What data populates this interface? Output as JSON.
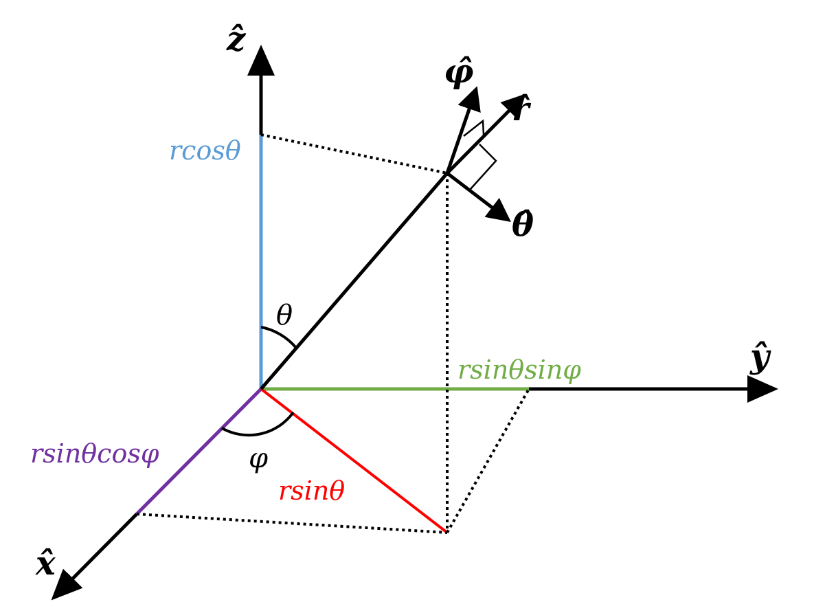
{
  "axes": {
    "x_label": "x̂",
    "y_label": "ŷ",
    "z_label": "ẑ"
  },
  "unit_vectors": {
    "r_label": "r̂",
    "theta_label": "θ̂",
    "phi_label": "φ̂"
  },
  "angles": {
    "theta": "θ",
    "phi": "φ"
  },
  "components": {
    "z_component": "rcosθ",
    "y_component": "rsinθsinφ",
    "x_component": "rsinθcosφ",
    "xy_projection": "rsinθ"
  },
  "colors": {
    "axis": "#000000",
    "z_component": "#5b9bd5",
    "y_component": "#70ad47",
    "x_component": "#7030a0",
    "xy_projection": "#ff0000",
    "dotted": "#000000"
  }
}
